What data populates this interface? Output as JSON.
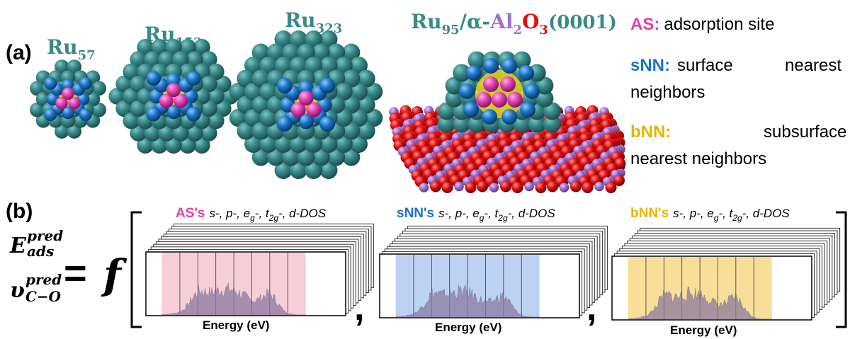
{
  "panel_a": {
    "label": "(a)",
    "clusters": [
      {
        "base": "Ru",
        "sub": "57"
      },
      {
        "base": "Ru",
        "sub": "153"
      },
      {
        "base": "Ru",
        "sub": "323"
      }
    ],
    "supported": {
      "base": "Ru",
      "sub": "95",
      "slash": "/",
      "alpha": "α-",
      "al": "Al",
      "al_sub": "2",
      "o": "O",
      "o_sub": "3",
      "facet": "(0001)"
    },
    "legend": [
      {
        "key": "AS:",
        "desc": "adsorption site",
        "color": "#e040b0"
      },
      {
        "key": "sNN:",
        "desc": "surface nearest neighbors",
        "color": "#1a74c4"
      },
      {
        "key": "bNN:",
        "desc": "subsurface nearest neighbors",
        "color": "#e8b400"
      }
    ]
  },
  "panel_b": {
    "label": "(b)",
    "e_main": "E",
    "e_sup": "pred",
    "e_sub": "ads",
    "nu_main": "υ",
    "nu_sup": "pred",
    "nu_sub": "C−O",
    "equals": "=",
    "f": "f",
    "comma": ",",
    "dos_label": "s-, p-, e",
    "dos_sub1": "g",
    "dos_mid": "-, t",
    "dos_sub2": "2g",
    "dos_end": "-, d-DOS",
    "stacks": [
      {
        "name": "AS's",
        "color": "#e040b0",
        "shade": "#f6cbd5"
      },
      {
        "name": "sNN's",
        "color": "#1a74c4",
        "shade": "#b9d0f1"
      },
      {
        "name": "bNN's",
        "color": "#e8b400",
        "shade": "#f8dc93"
      }
    ],
    "x_axis_label": "Energy (eV)"
  },
  "colors": {
    "ru": "#3a8a8a",
    "adsorption_site": "#e040b0",
    "surface_nn": "#1a74c4",
    "subsurface_nn": "#e8d020",
    "oxygen": "#e01010",
    "aluminum": "#a070d0",
    "dos_fill": "#8a7aa0"
  }
}
